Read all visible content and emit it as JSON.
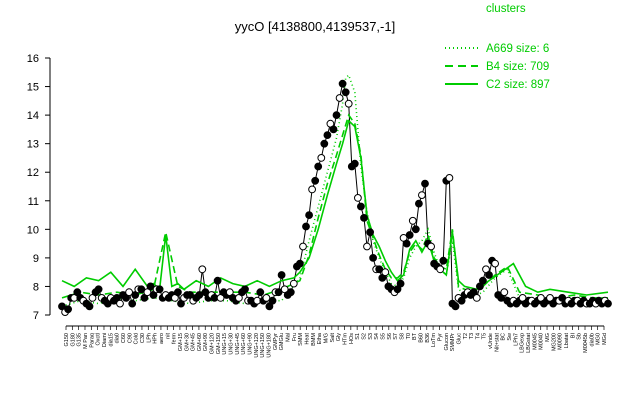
{
  "chart_data": {
    "type": "line",
    "title": "yycO [4138800,4139537,-1]",
    "xlabel": "",
    "ylabel": "",
    "ylim": [
      7,
      16
    ],
    "yticks": [
      7,
      8,
      9,
      10,
      11,
      12,
      13,
      14,
      15,
      16
    ],
    "x_tick_labels": [
      "G150",
      "G180",
      "G135",
      "M Pan",
      "Paraq",
      "Oxctl",
      "Diami",
      "dia15",
      "dia0",
      "C60",
      "C90",
      "Cold",
      "C30",
      "LPh",
      "HPh",
      "aero",
      "nit",
      "ferm",
      "GM+15",
      "GM+30",
      "GM+45",
      "GM+60",
      "GM+90",
      "GM+120",
      "GM+150",
      "UNG+15",
      "UNG+30",
      "UNG+45",
      "UNG+60",
      "UNG+90",
      "UNG+120",
      "UNG+150",
      "UNG+180",
      "GMPyr",
      "GMGlu",
      "Mal",
      "Fru",
      "SMM",
      "Heat",
      "BMM",
      "Etha",
      "M/G",
      "Salt",
      "Gly",
      "HTm",
      "HOs",
      "S1",
      "S2",
      "S3",
      "S4",
      "S5",
      "S6",
      "S7",
      "S8",
      "T0",
      "BT",
      "B60",
      "B36",
      "LoTm",
      "Pyr",
      "Glucon",
      "SMMPr",
      "Gluc",
      "T2",
      "T3",
      "T4",
      "T5",
      "vUnde",
      "Nit+stat",
      "BC",
      "Sw",
      "LPh7",
      "LBGexp",
      "LBGstat",
      "M0045",
      "M0040",
      "MG",
      "MG200",
      "M0090",
      "Lbatat",
      "BI",
      "Sb",
      "M0045b",
      "dia0b",
      "MG0",
      "MGd"
    ],
    "clusters_title": "clusters",
    "legend": [
      {
        "name": "A669 size: 6",
        "style": "dotted",
        "color": "#00cc00"
      },
      {
        "name": "B4 size: 709",
        "style": "dashed",
        "color": "#00cc00"
      },
      {
        "name": "C2 size: 897",
        "style": "solid",
        "color": "#00cc00"
      }
    ],
    "legend_placement": "top-right",
    "series": [
      {
        "name": "yycO",
        "style": "black-line-with-points",
        "x": [
          0,
          1,
          2,
          3,
          4,
          5,
          6,
          7,
          8,
          9,
          10,
          11,
          12,
          13,
          14,
          15,
          16,
          17,
          18,
          19,
          20,
          21,
          22,
          23,
          24,
          25,
          26,
          27,
          28,
          29,
          30,
          31,
          32,
          33,
          34,
          35,
          36,
          37,
          38,
          39,
          40,
          41,
          42,
          43,
          44,
          45,
          46,
          47,
          48,
          49,
          50,
          51,
          52,
          53,
          54,
          55,
          56,
          57,
          58,
          59,
          60,
          61,
          62,
          63,
          64,
          65,
          66,
          67,
          68,
          69,
          70,
          71,
          72,
          73,
          74,
          75,
          76,
          77,
          78,
          79,
          80,
          81,
          82,
          83,
          84,
          85,
          86,
          87,
          88,
          89,
          90,
          91,
          92,
          93,
          94,
          95,
          96,
          97,
          98,
          99,
          100,
          101,
          102,
          103,
          104,
          105,
          106,
          107,
          108,
          109,
          110,
          111,
          112,
          113,
          114,
          115,
          116,
          117,
          118,
          119,
          120,
          121,
          122,
          123,
          124,
          125,
          126,
          127,
          128,
          129,
          130,
          131,
          132,
          133,
          134,
          135,
          136,
          137,
          138,
          139,
          140,
          141,
          142,
          143,
          144,
          145,
          146,
          147,
          148,
          149,
          150,
          151,
          152,
          153,
          154,
          155,
          156,
          157,
          158,
          159,
          160,
          161,
          162,
          163,
          164,
          165,
          166,
          167,
          168,
          169,
          170,
          171,
          172,
          173,
          174,
          175,
          176,
          177,
          178,
          179
        ],
        "values": [
          7.3,
          7.1,
          7.2,
          7.6,
          7.6,
          7.8,
          7.6,
          7.5,
          7.4,
          7.3,
          7.6,
          7.8,
          7.9,
          7.6,
          7.5,
          7.4,
          7.6,
          7.5,
          7.6,
          7.4,
          7.7,
          7.6,
          7.8,
          7.4,
          7.7,
          7.9,
          7.9,
          7.6,
          7.8,
          8.0,
          7.7,
          7.9,
          7.9,
          7.6,
          7.7,
          7.6,
          7.7,
          7.6,
          7.8,
          7.4,
          7.6,
          7.7,
          7.7,
          7.5,
          7.6,
          7.7,
          8.6,
          7.8,
          7.6,
          7.7,
          7.6,
          8.2,
          7.6,
          7.8,
          7.7,
          7.8,
          7.6,
          7.5,
          7.6,
          7.8,
          7.9,
          7.5,
          7.5,
          7.4,
          7.5,
          7.8,
          7.5,
          7.6,
          7.3,
          7.5,
          7.8,
          7.8,
          8.4,
          7.9,
          7.7,
          7.8,
          8.1,
          8.7,
          8.8,
          9.4,
          10.1,
          10.5,
          11.4,
          11.7,
          12.2,
          12.5,
          13.0,
          13.3,
          13.7,
          13.5,
          14.0,
          14.6,
          15.1,
          14.8,
          14.4,
          12.2,
          12.3,
          11.1,
          10.8,
          10.4,
          9.4,
          9.9,
          9.0,
          8.6,
          8.6,
          8.3,
          8.5,
          8.0,
          7.9,
          7.8,
          7.9,
          8.1,
          9.7,
          9.5,
          9.8,
          10.3,
          10.0,
          10.9,
          11.2,
          11.6,
          9.5,
          9.4,
          8.8,
          8.7,
          8.6,
          8.9,
          11.7,
          11.8,
          7.4,
          7.3,
          7.6,
          7.5,
          7.7,
          7.8,
          7.7,
          7.8,
          7.6,
          8.0,
          8.2,
          8.6,
          8.4,
          8.9,
          8.8,
          7.7,
          7.6,
          7.8,
          7.5,
          7.4,
          7.5,
          7.4,
          7.5,
          7.6,
          7.4,
          7.5,
          7.5,
          7.4,
          7.5,
          7.6,
          7.4,
          7.5,
          7.6,
          7.4,
          7.5,
          7.5,
          7.6,
          7.4,
          7.5,
          7.4,
          7.5,
          7.5,
          7.4,
          7.5,
          7.4,
          7.4,
          7.5,
          7.4,
          7.5,
          7.4,
          7.5,
          7.4
        ]
      },
      {
        "name": "A669 size: 6",
        "style": "dotted",
        "x": [
          0,
          6,
          12,
          18,
          24,
          30,
          36,
          42,
          48,
          54,
          60,
          66,
          72,
          78,
          81,
          84,
          87,
          90,
          92,
          93,
          94,
          96,
          98,
          100,
          102,
          104,
          106,
          108,
          110,
          112,
          114,
          116,
          118,
          120,
          122,
          124,
          126,
          128,
          130,
          134,
          138,
          142,
          146,
          150,
          156,
          162,
          168,
          174,
          179
        ],
        "values": [
          7.3,
          7.5,
          7.4,
          7.6,
          7.5,
          7.6,
          7.5,
          7.4,
          7.5,
          7.5,
          7.4,
          7.5,
          7.5,
          8.3,
          9.6,
          10.8,
          12.0,
          13.2,
          14.4,
          15.3,
          15.4,
          14.8,
          12.2,
          10.6,
          9.6,
          9.0,
          8.5,
          8.1,
          8.0,
          8.3,
          9.0,
          9.4,
          9.6,
          10.0,
          9.2,
          8.6,
          8.4,
          9.6,
          7.9,
          7.6,
          7.8,
          8.3,
          8.6,
          7.6,
          7.5,
          7.4,
          7.5,
          7.4,
          7.4
        ]
      },
      {
        "name": "B4 size: 709",
        "style": "dashed",
        "x": [
          0,
          6,
          12,
          18,
          24,
          30,
          34,
          38,
          42,
          48,
          54,
          60,
          66,
          72,
          78,
          81,
          84,
          87,
          90,
          92,
          94,
          96,
          98,
          100,
          102,
          104,
          106,
          108,
          110,
          112,
          114,
          116,
          118,
          120,
          122,
          124,
          126,
          128,
          130,
          134,
          138,
          142,
          146,
          150,
          156,
          162,
          168,
          174,
          179
        ],
        "values": [
          7.6,
          7.8,
          7.7,
          7.8,
          7.7,
          7.9,
          9.9,
          8.0,
          7.8,
          7.8,
          7.8,
          7.8,
          7.7,
          7.9,
          8.2,
          9.1,
          10.4,
          11.6,
          12.6,
          13.3,
          14.0,
          13.7,
          12.6,
          10.3,
          9.7,
          9.1,
          8.6,
          8.3,
          8.3,
          8.5,
          9.2,
          9.5,
          9.3,
          9.8,
          9.0,
          8.7,
          8.6,
          10.0,
          8.0,
          7.8,
          8.0,
          8.4,
          8.7,
          7.8,
          7.7,
          7.6,
          7.7,
          7.6,
          7.6
        ]
      },
      {
        "name": "C2 size: 897",
        "style": "solid",
        "x": [
          0,
          4,
          8,
          12,
          16,
          20,
          24,
          28,
          30,
          32,
          34,
          36,
          38,
          40,
          44,
          48,
          52,
          56,
          60,
          64,
          68,
          72,
          76,
          78,
          81,
          84,
          87,
          90,
          92,
          94,
          96,
          98,
          100,
          102,
          104,
          106,
          108,
          110,
          112,
          114,
          116,
          118,
          120,
          122,
          124,
          126,
          128,
          130,
          132,
          136,
          140,
          144,
          148,
          152,
          156,
          160,
          166,
          172,
          179
        ],
        "values": [
          8.2,
          8.0,
          8.3,
          8.2,
          8.5,
          8.0,
          8.6,
          8.0,
          8.1,
          7.9,
          9.8,
          8.0,
          8.1,
          7.9,
          8.2,
          8.0,
          8.3,
          8.1,
          8.0,
          8.2,
          8.0,
          8.2,
          8.3,
          8.5,
          9.0,
          10.0,
          11.2,
          12.3,
          13.0,
          13.8,
          13.6,
          12.5,
          10.5,
          9.8,
          9.4,
          8.9,
          8.5,
          8.2,
          8.4,
          9.3,
          9.6,
          9.2,
          9.6,
          8.9,
          8.6,
          8.4,
          9.9,
          8.2,
          8.0,
          7.9,
          8.2,
          8.5,
          8.8,
          8.0,
          7.8,
          7.9,
          7.8,
          7.7,
          7.8
        ]
      }
    ]
  }
}
